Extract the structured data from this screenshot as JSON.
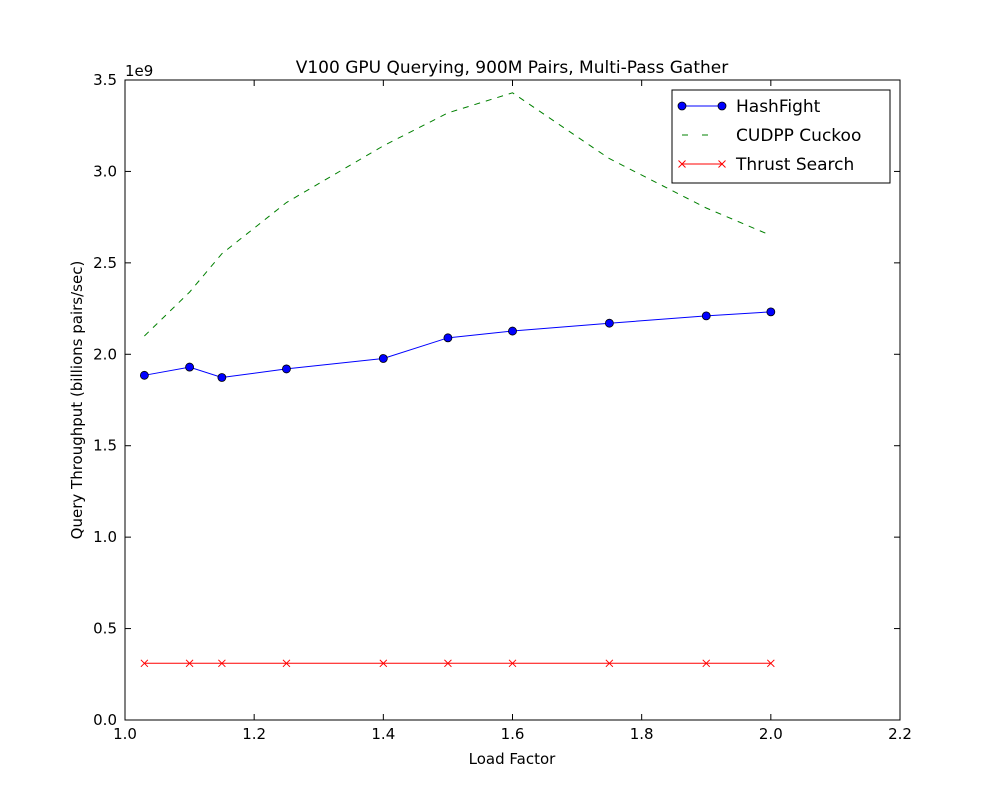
{
  "chart_data": {
    "type": "line",
    "title": "V100 GPU Querying, 900M Pairs, Multi-Pass Gather",
    "xlabel": "Load Factor",
    "ylabel": "Query Throughput (billions pairs/sec)",
    "y_offset_label": "1e9",
    "xlim": [
      1.0,
      2.2
    ],
    "ylim": [
      0.0,
      3.5
    ],
    "xticks": [
      1.0,
      1.2,
      1.4,
      1.6,
      1.8,
      2.0,
      2.2
    ],
    "xtick_labels": [
      "1.0",
      "1.2",
      "1.4",
      "1.6",
      "1.8",
      "2.0",
      "2.2"
    ],
    "yticks": [
      0.0,
      0.5,
      1.0,
      1.5,
      2.0,
      2.5,
      3.0,
      3.5
    ],
    "ytick_labels": [
      "0.0",
      "0.5",
      "1.0",
      "1.5",
      "2.0",
      "2.5",
      "3.0",
      "3.5"
    ],
    "grid": false,
    "legend_position": "top-right",
    "x": [
      1.03,
      1.1,
      1.15,
      1.25,
      1.4,
      1.5,
      1.6,
      1.75,
      1.9,
      2.0
    ],
    "series": [
      {
        "name": "HashFight",
        "color": "#0000ff",
        "linestyle": "solid",
        "marker": "circle",
        "values": [
          1.885,
          1.93,
          1.873,
          1.92,
          1.977,
          2.09,
          2.127,
          2.17,
          2.21,
          2.232
        ]
      },
      {
        "name": "CUDPP Cuckoo",
        "color": "#008000",
        "linestyle": "dashed",
        "marker": "none",
        "values": [
          2.1,
          2.34,
          2.55,
          2.83,
          3.14,
          3.32,
          3.43,
          3.07,
          2.8,
          2.65
        ]
      },
      {
        "name": "Thrust Search",
        "color": "#ff0000",
        "linestyle": "solid",
        "marker": "x",
        "values": [
          0.31,
          0.31,
          0.31,
          0.31,
          0.31,
          0.31,
          0.31,
          0.31,
          0.31,
          0.31
        ]
      }
    ]
  }
}
